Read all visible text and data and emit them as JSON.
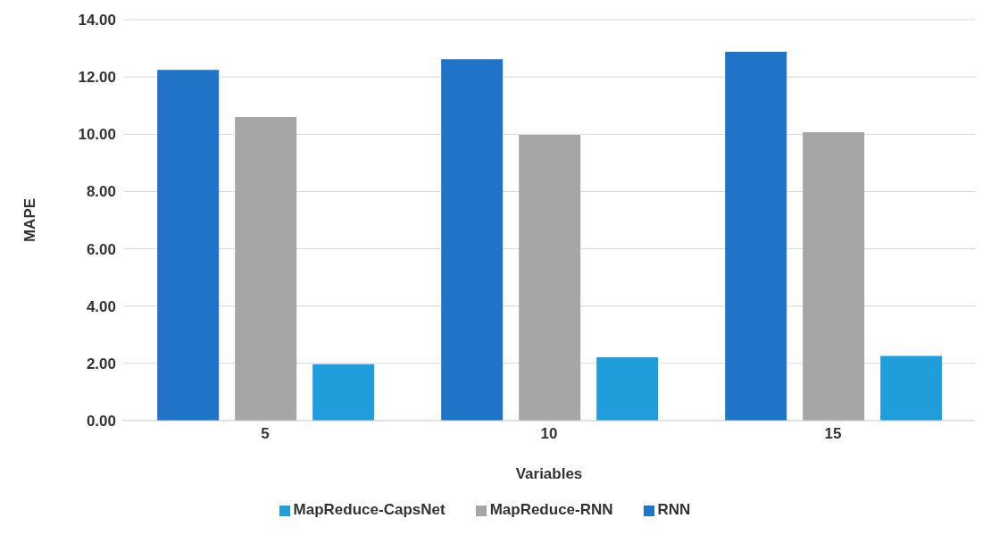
{
  "chart_data": {
    "type": "bar",
    "xlabel": "Variables",
    "ylabel": "MAPE",
    "categories": [
      "5",
      "10",
      "15"
    ],
    "series": [
      {
        "name": "RNN",
        "color": "#1f73c8",
        "values": [
          12.25,
          12.62,
          12.88
        ]
      },
      {
        "name": "MapReduce-RNN",
        "color": "#a6a6a6",
        "values": [
          10.6,
          9.98,
          10.07
        ]
      },
      {
        "name": "MapReduce-CapsNet",
        "color": "#1f9edb",
        "values": [
          1.97,
          2.21,
          2.26
        ]
      }
    ],
    "ylim": [
      0,
      14
    ],
    "yticks": [
      {
        "value": 0,
        "label": "0.00"
      },
      {
        "value": 2,
        "label": "2.00"
      },
      {
        "value": 4,
        "label": "4.00"
      },
      {
        "value": 6,
        "label": "6.00"
      },
      {
        "value": 8,
        "label": "8.00"
      },
      {
        "value": 10,
        "label": "10.00"
      },
      {
        "value": 12,
        "label": "12.00"
      },
      {
        "value": 14,
        "label": "14.00"
      }
    ],
    "grid": "y",
    "legend": "bottom"
  }
}
